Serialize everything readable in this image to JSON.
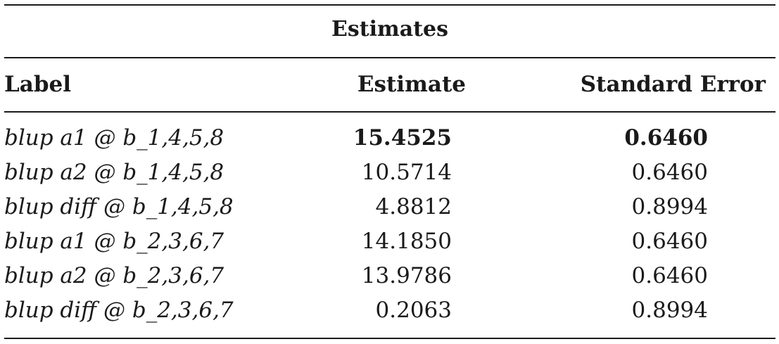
{
  "table": {
    "caption": "Estimates",
    "headers": {
      "label": "Label",
      "estimate": "Estimate",
      "standard_error": "Standard Error"
    },
    "rows": [
      {
        "label": "blup a1 @ b_1,4,5,8",
        "estimate": "15.4525",
        "standard_error": "0.6460",
        "bold": true
      },
      {
        "label": "blup a2 @ b_1,4,5,8",
        "estimate": "10.5714",
        "standard_error": "0.6460",
        "bold": false
      },
      {
        "label": "blup diff @ b_1,4,5,8",
        "estimate": "4.8812",
        "standard_error": "0.8994",
        "bold": false
      },
      {
        "label": "blup a1 @ b_2,3,6,7",
        "estimate": "14.1850",
        "standard_error": "0.6460",
        "bold": false
      },
      {
        "label": "blup a2 @ b_2,3,6,7",
        "estimate": "13.9786",
        "standard_error": "0.6460",
        "bold": false
      },
      {
        "label": "blup diff @ b_2,3,6,7",
        "estimate": "0.2063",
        "standard_error": "0.8994",
        "bold": false
      }
    ]
  }
}
